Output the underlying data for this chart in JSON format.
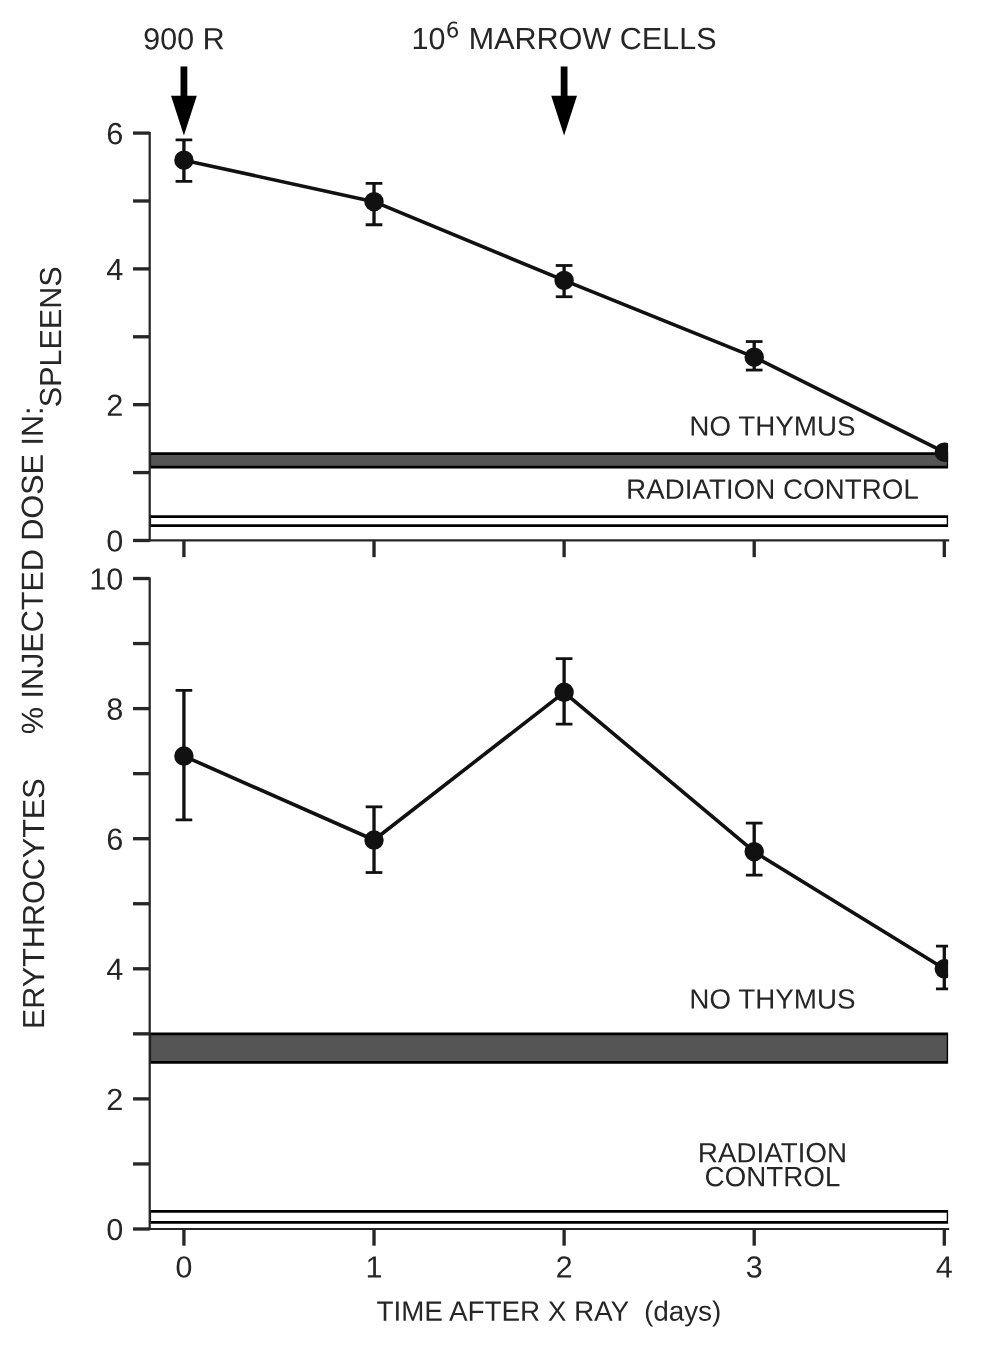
{
  "chart_data": [
    {
      "type": "line",
      "ylabel": "SPLEENS",
      "x": [
        0,
        1,
        2,
        3,
        4
      ],
      "xlim": [
        -0.18,
        4.02
      ],
      "xticks": [
        0,
        1,
        2,
        3,
        4
      ],
      "ylim": [
        0,
        6
      ],
      "yticks": [
        0,
        {
          "value": 1,
          "label": null
        },
        2,
        {
          "value": 3,
          "label": null
        },
        4,
        {
          "value": 5,
          "label": null
        },
        6
      ],
      "tick_labels": "y",
      "marker": "circle",
      "line_style": "solid",
      "grid": false,
      "series": [
        {
          "color": "#111111",
          "values": [
            5.6,
            4.99,
            3.83,
            2.7,
            1.3
          ],
          "errors": [
            [
              5.29,
              5.9
            ],
            [
              4.65,
              5.26
            ],
            [
              3.59,
              4.05
            ],
            [
              2.51,
              2.93
            ],
            null
          ]
        }
      ],
      "bands": [
        {
          "axis": "y",
          "from": 1.08,
          "to": 1.28,
          "label": "NO THYMUS",
          "color": "#555555"
        },
        {
          "axis": "y",
          "from": 0.22,
          "to": 0.35,
          "label": "RADIATION CONTROL",
          "color": "#ffffff"
        }
      ],
      "ref_lines": [
        {
          "axis": "x",
          "value": 0,
          "label": "900 R"
        },
        {
          "axis": "x",
          "value": 2,
          "label": "10$^{6}$ MARROW CELLS"
        }
      ],
      "annotations": [
        "% INJECTED DOSE IN:"
      ]
    },
    {
      "type": "line",
      "ylabel": "ERYTHROCYTES",
      "xlabel": "TIME AFTER X RAY  (days)",
      "x": [
        0,
        1,
        2,
        3,
        4
      ],
      "xlim": [
        -0.18,
        4.02
      ],
      "xticks": [
        0,
        1,
        2,
        3,
        4
      ],
      "ylim": [
        0,
        10
      ],
      "yticks": [
        0,
        {
          "value": 1,
          "label": null
        },
        2,
        {
          "value": 3,
          "label": null
        },
        4,
        {
          "value": 5,
          "label": null
        },
        6,
        {
          "value": 7,
          "label": null
        },
        8,
        {
          "value": 9,
          "label": null
        },
        10
      ],
      "marker": "circle",
      "line_style": "solid",
      "grid": false,
      "series": [
        {
          "color": "#111111",
          "values": [
            7.27,
            5.98,
            8.25,
            5.8,
            4.0
          ],
          "errors": [
            [
              6.29,
              8.28
            ],
            [
              5.48,
              6.49
            ],
            [
              7.76,
              8.77
            ],
            [
              5.44,
              6.24
            ],
            [
              3.69,
              4.35
            ]
          ]
        }
      ],
      "bands": [
        {
          "axis": "y",
          "from": 2.56,
          "to": 3.0,
          "label": "NO THYMUS",
          "color": "#555555"
        },
        {
          "axis": "y",
          "from": 0.1,
          "to": 0.27,
          "label": "RADIATION\nCONTROL",
          "color": "#ffffff"
        }
      ]
    }
  ]
}
